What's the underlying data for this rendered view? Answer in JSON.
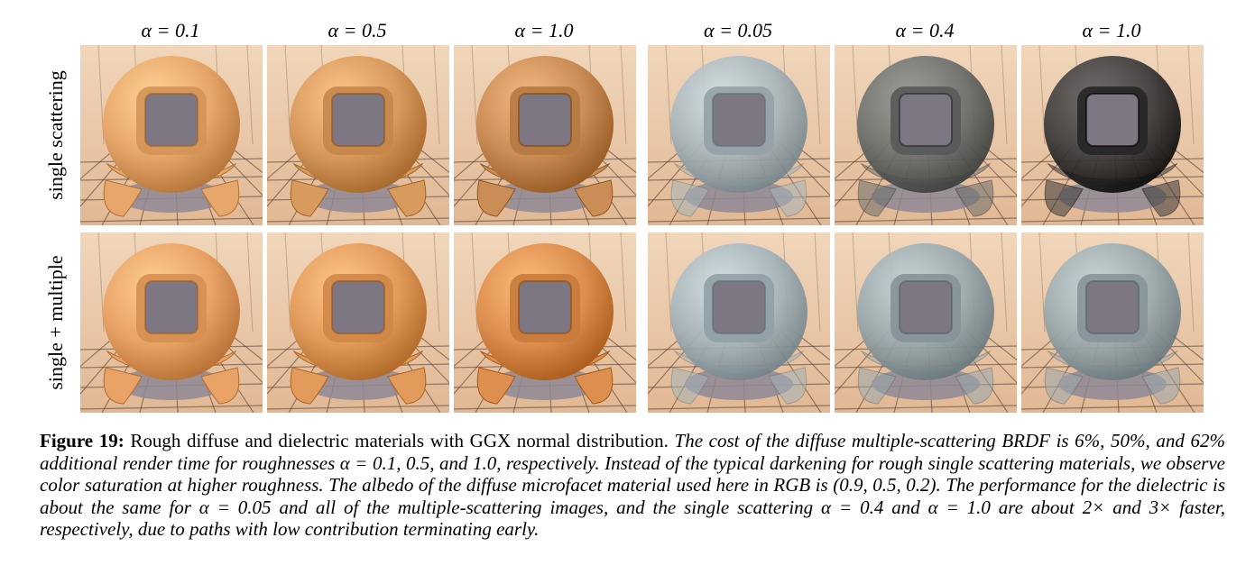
{
  "column_headers": [
    "α = 0.1",
    "α = 0.5",
    "α = 1.0",
    "α = 0.05",
    "α = 0.4",
    "α = 1.0"
  ],
  "row_labels": [
    "single scattering",
    "single + multiple"
  ],
  "tiles": [
    {
      "row": 0,
      "col": 0,
      "material": "diffuse",
      "color": "#e8a76a"
    },
    {
      "row": 0,
      "col": 1,
      "material": "diffuse",
      "color": "#d99a5e"
    },
    {
      "row": 0,
      "col": 2,
      "material": "diffuse",
      "color": "#c98d55"
    },
    {
      "row": 0,
      "col": 3,
      "material": "dielectric",
      "color": "#a7b5bb"
    },
    {
      "row": 0,
      "col": 4,
      "material": "dielectric",
      "color": "#6b6e6c"
    },
    {
      "row": 0,
      "col": 5,
      "material": "dielectric",
      "color": "#3a3a3a"
    },
    {
      "row": 1,
      "col": 0,
      "material": "diffuse",
      "color": "#eaa366"
    },
    {
      "row": 1,
      "col": 1,
      "material": "diffuse",
      "color": "#e39b5c"
    },
    {
      "row": 1,
      "col": 2,
      "material": "diffuse",
      "color": "#dc8f4f"
    },
    {
      "row": 1,
      "col": 3,
      "material": "dielectric",
      "color": "#a4b4ba"
    },
    {
      "row": 1,
      "col": 4,
      "material": "dielectric",
      "color": "#99a8ad"
    },
    {
      "row": 1,
      "col": 5,
      "material": "dielectric",
      "color": "#9aa9ae"
    }
  ],
  "caption": {
    "label": "Figure 19:",
    "title": " Rough diffuse and dielectric materials with GGX normal distribution. ",
    "body": "The cost of the diffuse multiple-scattering BRDF is 6%, 50%, and 62% additional render time for roughnesses α = 0.1, 0.5, and 1.0, respectively. Instead of the typical darkening for rough single scattering materials, we observe color saturation at higher roughness. The albedo of the diffuse microfacet material used here in RGB is (0.9, 0.5, 0.2). The performance for the dielectric is about the same for α = 0.05 and all of the multiple-scattering images, and the single scattering α = 0.4 and α = 1.0 are about 2× and 3× faster, respectively, due to paths with low contribution terminating early."
  }
}
